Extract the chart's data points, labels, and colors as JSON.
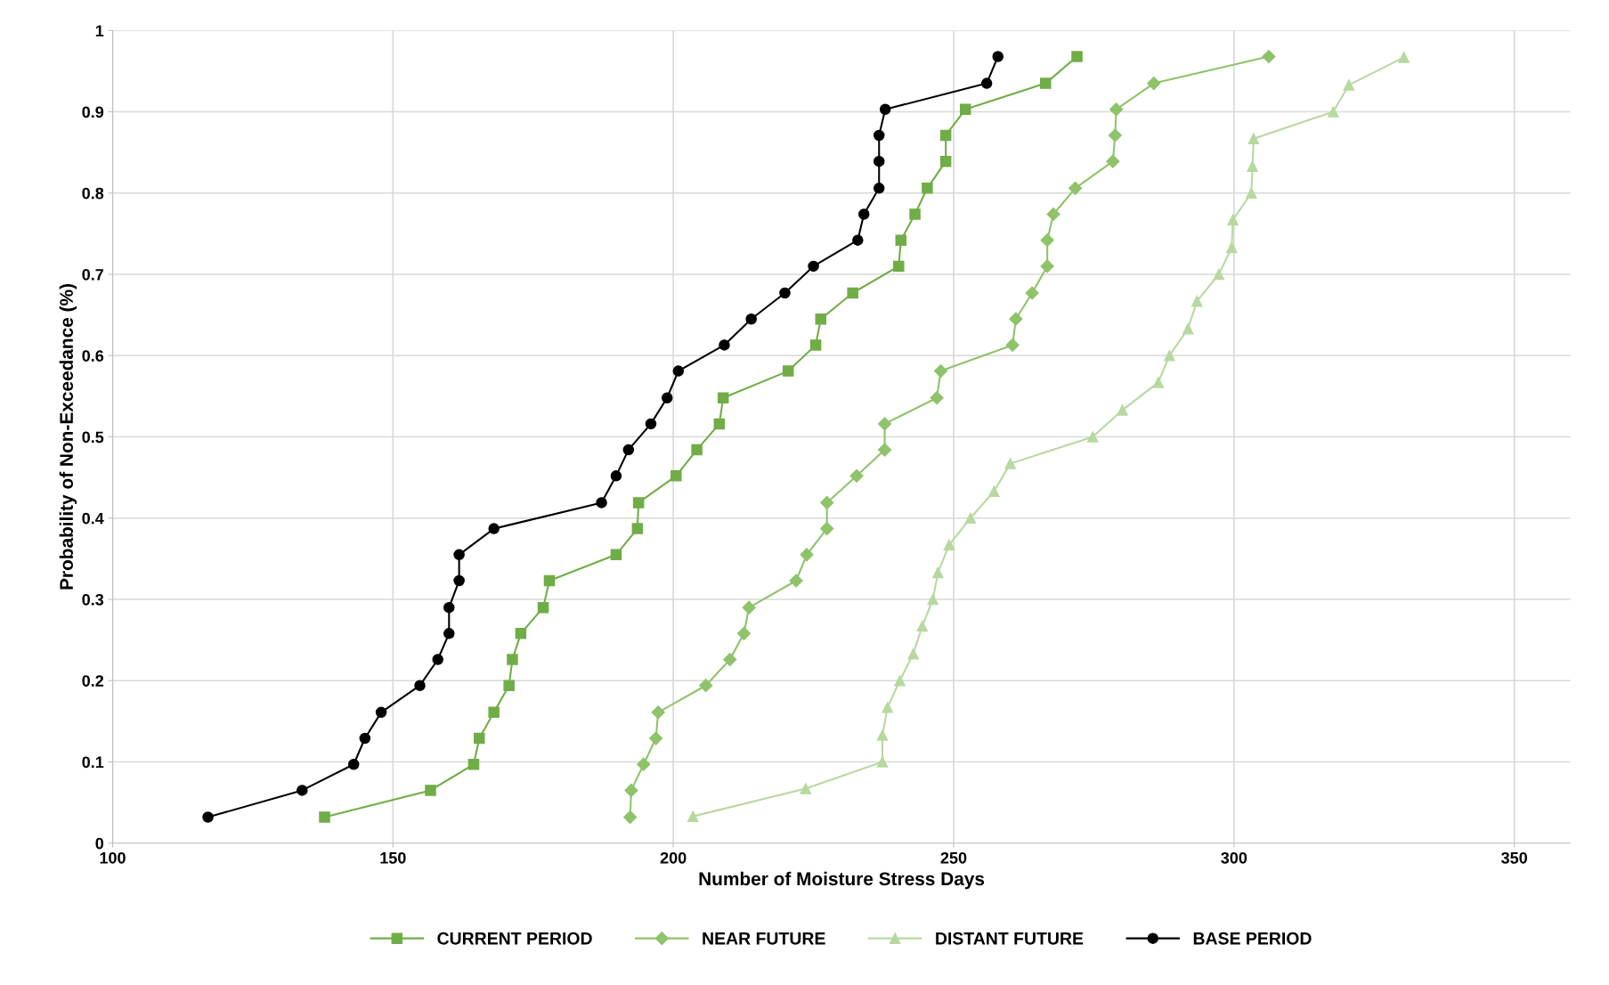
{
  "chart_data": {
    "type": "line",
    "xlabel": "Number of Moisture Stress Days",
    "ylabel": "Probability of Non-Exceedance (%)",
    "xlim": [
      100,
      360
    ],
    "xticks": [
      100,
      150,
      200,
      250,
      300,
      350
    ],
    "ylim": [
      0,
      1
    ],
    "yticks": [
      0,
      0.1,
      0.2,
      0.3,
      0.4,
      0.5,
      0.6,
      0.7,
      0.8,
      0.9,
      1
    ],
    "grid": true,
    "legend": "bottom",
    "line_style": "solid",
    "series": [
      {
        "name": "CURRENT PERIOD",
        "color": "#70ad47",
        "marker": "square",
        "x": [
          137.8,
          156.7,
          164.4,
          165.4,
          168.0,
          170.7,
          171.3,
          172.8,
          176.8,
          177.9,
          189.8,
          193.6,
          193.8,
          200.5,
          204.2,
          208.2,
          208.9,
          220.5,
          225.4,
          226.3,
          232.0,
          240.2,
          240.6,
          243.1,
          245.3,
          248.6,
          248.6,
          252.1,
          266.4,
          272.0
        ],
        "values": [
          0.032,
          0.065,
          0.097,
          0.129,
          0.161,
          0.194,
          0.226,
          0.258,
          0.29,
          0.323,
          0.355,
          0.387,
          0.419,
          0.452,
          0.484,
          0.516,
          0.548,
          0.581,
          0.613,
          0.645,
          0.677,
          0.71,
          0.742,
          0.774,
          0.806,
          0.839,
          0.871,
          0.903,
          0.935,
          0.968
        ]
      },
      {
        "name": "NEAR FUTURE",
        "color": "#8fc36a",
        "marker": "diamond",
        "x": [
          192.3,
          192.5,
          194.7,
          196.9,
          197.3,
          205.8,
          210.1,
          212.6,
          213.5,
          221.9,
          223.8,
          227.4,
          227.4,
          232.7,
          237.7,
          237.7,
          247.0,
          247.7,
          260.5,
          261.1,
          264.0,
          266.7,
          266.7,
          267.8,
          271.7,
          278.4,
          278.8,
          279.0,
          285.7,
          306.2
        ],
        "values": [
          0.032,
          0.065,
          0.097,
          0.129,
          0.161,
          0.194,
          0.226,
          0.258,
          0.29,
          0.323,
          0.355,
          0.387,
          0.419,
          0.452,
          0.484,
          0.516,
          0.548,
          0.581,
          0.613,
          0.645,
          0.677,
          0.71,
          0.742,
          0.774,
          0.806,
          0.839,
          0.871,
          0.903,
          0.935,
          0.968
        ]
      },
      {
        "name": "DISTANT FUTURE",
        "color": "#b7d9a0",
        "marker": "triangle",
        "x": [
          203.5,
          223.6,
          237.3,
          237.3,
          238.2,
          240.4,
          242.8,
          244.4,
          246.3,
          247.2,
          249.2,
          253.0,
          257.2,
          260.1,
          274.8,
          280.1,
          286.5,
          288.5,
          291.8,
          293.4,
          297.3,
          299.6,
          299.8,
          303.1,
          303.3,
          303.5,
          317.7,
          320.5,
          330.3
        ],
        "values": [
          0.033,
          0.067,
          0.1,
          0.133,
          0.167,
          0.2,
          0.233,
          0.267,
          0.3,
          0.333,
          0.367,
          0.4,
          0.433,
          0.467,
          0.5,
          0.533,
          0.567,
          0.6,
          0.633,
          0.667,
          0.7,
          0.733,
          0.767,
          0.8,
          0.833,
          0.867,
          0.9,
          0.933,
          0.967
        ]
      },
      {
        "name": "BASE PERIOD",
        "color": "#000000",
        "marker": "circle",
        "x": [
          117.0,
          133.8,
          143.0,
          145.0,
          147.9,
          154.8,
          158.0,
          160.0,
          160.0,
          161.8,
          161.8,
          168.0,
          187.2,
          189.8,
          192.0,
          196.0,
          198.9,
          200.9,
          209.1,
          213.9,
          219.9,
          225.0,
          232.9,
          234.0,
          236.7,
          236.7,
          236.7,
          237.8,
          255.9,
          257.9
        ],
        "values": [
          0.032,
          0.065,
          0.097,
          0.129,
          0.161,
          0.194,
          0.226,
          0.258,
          0.29,
          0.323,
          0.355,
          0.387,
          0.419,
          0.452,
          0.484,
          0.516,
          0.548,
          0.581,
          0.613,
          0.645,
          0.677,
          0.71,
          0.742,
          0.774,
          0.806,
          0.839,
          0.871,
          0.903,
          0.935,
          0.968
        ]
      }
    ]
  }
}
